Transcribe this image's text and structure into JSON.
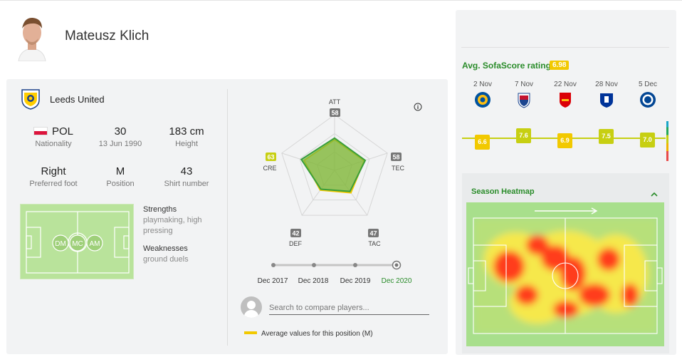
{
  "player": {
    "name": "Mateusz Klich"
  },
  "team": {
    "name": "Leeds United"
  },
  "stats": {
    "nationality": {
      "value": "POL",
      "label": "Nationality"
    },
    "age": {
      "value": "30",
      "label": "13 Jun 1990"
    },
    "height": {
      "value": "183 cm",
      "label": "Height"
    },
    "foot": {
      "value": "Right",
      "label": "Preferred foot"
    },
    "position": {
      "value": "M",
      "label": "Position"
    },
    "shirt": {
      "value": "43",
      "label": "Shirt number"
    }
  },
  "positions": [
    "DM",
    "MC",
    "AM"
  ],
  "strengths": {
    "heading": "Strengths",
    "text": "playmaking, high pressing"
  },
  "weaknesses": {
    "heading": "Weaknesses",
    "text": "ground duels"
  },
  "attributes": {
    "att": {
      "label": "ATT",
      "value": 58
    },
    "tec": {
      "label": "TEC",
      "value": 58
    },
    "tac": {
      "label": "TAC",
      "value": 47
    },
    "def": {
      "label": "DEF",
      "value": 42
    },
    "cre": {
      "label": "CRE",
      "value": 63
    }
  },
  "timeline": [
    "Dec 2017",
    "Dec 2018",
    "Dec 2019",
    "Dec 2020"
  ],
  "compare": {
    "placeholder": "Search to compare players..."
  },
  "legend": "Average values for this position (M)",
  "rating": {
    "title": "Avg. SofaScore rating",
    "average": "6.98",
    "matches": [
      {
        "date": "2 Nov",
        "crest": "leicester-crest",
        "rating": "6.6"
      },
      {
        "date": "7 Nov",
        "crest": "crystal-palace-crest",
        "rating": "7.6"
      },
      {
        "date": "22 Nov",
        "crest": "arsenal-crest",
        "rating": "6.9"
      },
      {
        "date": "28 Nov",
        "crest": "everton-crest",
        "rating": "7.5"
      },
      {
        "date": "5 Dec",
        "crest": "chelsea-crest",
        "rating": "7.0"
      }
    ]
  },
  "heatmap": {
    "title": "Season Heatmap"
  },
  "colors": {
    "accent_green": "#2a8c2a",
    "rating_yellow": "#f2c900",
    "rating_lime": "#c7cf12"
  }
}
